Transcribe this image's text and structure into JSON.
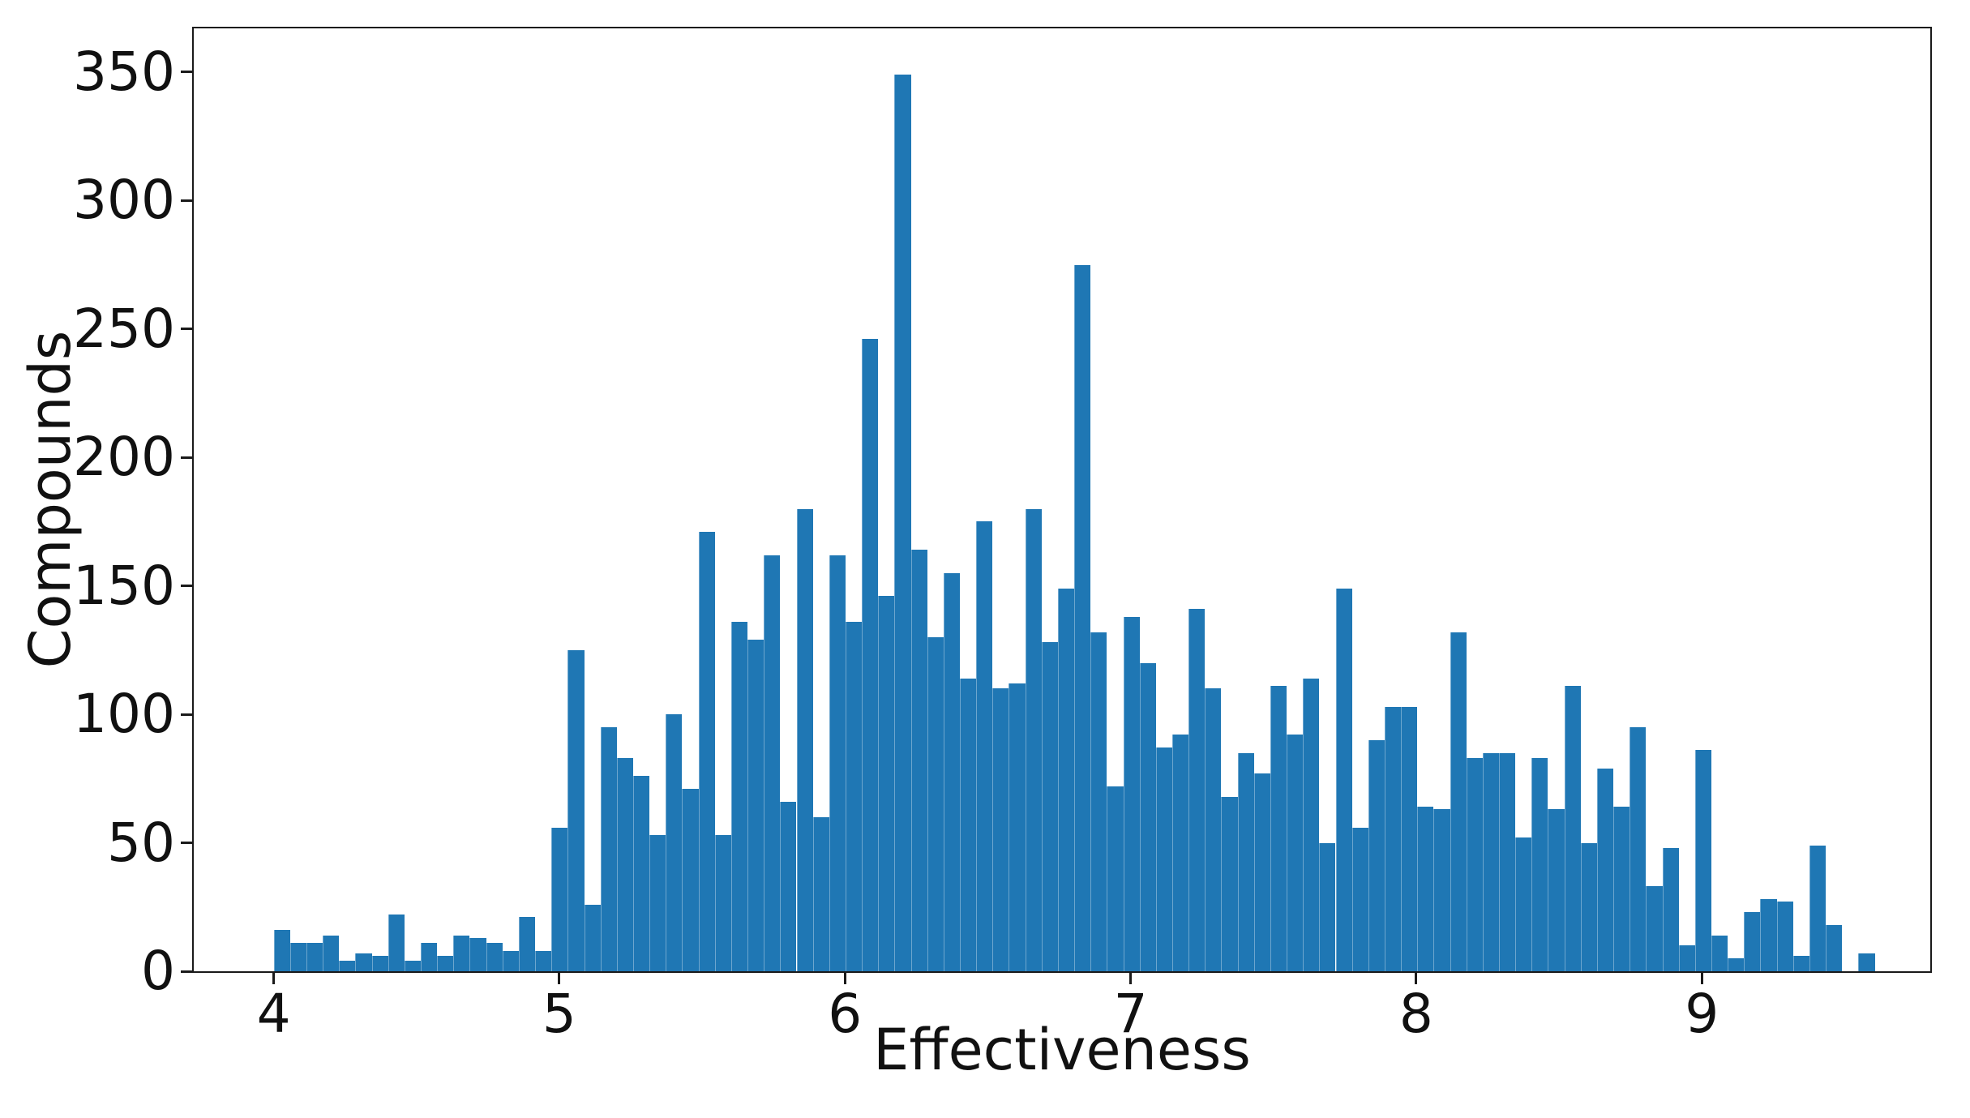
{
  "figure": {
    "background": "#ffffff"
  },
  "chart_data": {
    "type": "bar",
    "subtype": "histogram",
    "title": "",
    "xlabel": "Effectiveness",
    "ylabel": "Compounds",
    "bar_color": "#1f77b4",
    "axis_color": "#1a1a1a",
    "grid": false,
    "legend": null,
    "xlim": [
      3.72,
      9.8
    ],
    "ylim": [
      0,
      367
    ],
    "xticks": [
      4,
      5,
      6,
      7,
      8,
      9
    ],
    "yticks": [
      0,
      50,
      100,
      150,
      200,
      250,
      300,
      350
    ],
    "bin_start": 4.0,
    "bin_width": 0.0572,
    "counts": [
      16,
      11,
      11,
      14,
      4,
      7,
      6,
      22,
      4,
      11,
      6,
      14,
      13,
      11,
      8,
      21,
      8,
      56,
      125,
      26,
      95,
      83,
      76,
      53,
      100,
      71,
      171,
      53,
      136,
      129,
      162,
      66,
      180,
      60,
      162,
      136,
      246,
      146,
      349,
      164,
      130,
      155,
      114,
      175,
      110,
      112,
      180,
      128,
      149,
      275,
      132,
      72,
      138,
      120,
      87,
      92,
      141,
      110,
      68,
      85,
      77,
      111,
      92,
      114,
      50,
      149,
      56,
      90,
      103,
      103,
      64,
      63,
      132,
      83,
      85,
      85,
      52,
      83,
      63,
      111,
      50,
      79,
      64,
      95,
      33,
      48,
      10,
      86,
      14,
      5,
      23,
      28,
      27,
      6,
      49,
      18,
      0,
      7
    ]
  }
}
